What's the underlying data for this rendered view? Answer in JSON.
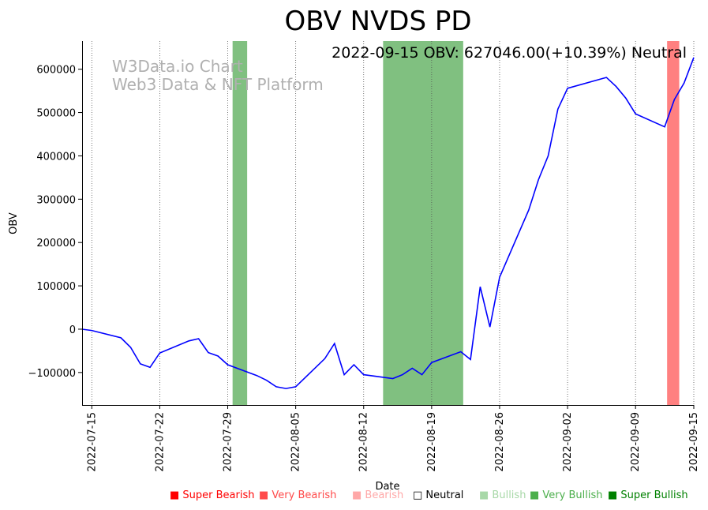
{
  "chart_data": {
    "type": "line",
    "title": "OBV NVDS PD",
    "xlabel": "Date",
    "ylabel": "OBV",
    "watermark": [
      "W3Data.io Chart",
      "Web3 Data & NFT Platform"
    ],
    "summary": "2022-09-15 OBV: 627046.00(+10.39%) Neutral",
    "x_tick_labels": [
      "2022-07-15",
      "2022-07-22",
      "2022-07-29",
      "2022-08-05",
      "2022-08-12",
      "2022-08-19",
      "2022-08-26",
      "2022-09-02",
      "2022-09-09",
      "2022-09-15"
    ],
    "x_range": [
      "2022-07-14",
      "2022-09-15"
    ],
    "ylim": [
      -175000,
      665000
    ],
    "y_ticks": [
      -100000,
      0,
      100000,
      200000,
      300000,
      400000,
      500000,
      600000
    ],
    "y_tick_labels": [
      "−100000",
      "0",
      "100000",
      "200000",
      "300000",
      "400000",
      "500000",
      "600000"
    ],
    "grid": "vertical dotted at x ticks",
    "series": [
      {
        "color": "#0000ff",
        "points": [
          [
            "2022-07-14",
            0
          ],
          [
            "2022-07-15",
            -3000
          ],
          [
            "2022-07-18",
            -20000
          ],
          [
            "2022-07-19",
            -42000
          ],
          [
            "2022-07-20",
            -80000
          ],
          [
            "2022-07-21",
            -88000
          ],
          [
            "2022-07-22",
            -55000
          ],
          [
            "2022-07-25",
            -27000
          ],
          [
            "2022-07-26",
            -22000
          ],
          [
            "2022-07-27",
            -54000
          ],
          [
            "2022-07-28",
            -62000
          ],
          [
            "2022-07-29",
            -82000
          ],
          [
            "2022-08-01",
            -107000
          ],
          [
            "2022-08-02",
            -118000
          ],
          [
            "2022-08-03",
            -133000
          ],
          [
            "2022-08-04",
            -137000
          ],
          [
            "2022-08-05",
            -133000
          ],
          [
            "2022-08-08",
            -68000
          ],
          [
            "2022-08-09",
            -33000
          ],
          [
            "2022-08-10",
            -105000
          ],
          [
            "2022-08-11",
            -82000
          ],
          [
            "2022-08-12",
            -105000
          ],
          [
            "2022-08-15",
            -114000
          ],
          [
            "2022-08-16",
            -105000
          ],
          [
            "2022-08-17",
            -90000
          ],
          [
            "2022-08-18",
            -105000
          ],
          [
            "2022-08-19",
            -77000
          ],
          [
            "2022-08-22",
            -52000
          ],
          [
            "2022-08-23",
            -70000
          ],
          [
            "2022-08-24",
            98000
          ],
          [
            "2022-08-25",
            5000
          ],
          [
            "2022-08-26",
            120000
          ],
          [
            "2022-08-29",
            275000
          ],
          [
            "2022-08-30",
            345000
          ],
          [
            "2022-08-31",
            400000
          ],
          [
            "2022-09-01",
            508000
          ],
          [
            "2022-09-02",
            556000
          ],
          [
            "2022-09-06",
            581000
          ],
          [
            "2022-09-07",
            560000
          ],
          [
            "2022-09-08",
            533000
          ],
          [
            "2022-09-09",
            497000
          ],
          [
            "2022-09-12",
            467000
          ],
          [
            "2022-09-13",
            530000
          ],
          [
            "2022-09-14",
            568000
          ],
          [
            "2022-09-15",
            627046
          ]
        ]
      }
    ],
    "shaded_regions": [
      {
        "start": "2022-07-29T12:00",
        "end": "2022-07-31",
        "color": "#80c080"
      },
      {
        "start": "2022-08-14",
        "end": "2022-08-22T06:00",
        "color": "#80c080"
      },
      {
        "start": "2022-09-12T06:00",
        "end": "2022-09-13T12:00",
        "color": "#ff8080"
      }
    ],
    "legend": [
      {
        "label": "Super Bearish",
        "color": "#ff0000"
      },
      {
        "label": "Very Bearish",
        "color": "#ff4a4a"
      },
      {
        "label": "Bearish",
        "color": "#ffa8a8"
      },
      {
        "label": "Neutral",
        "color": "#000000"
      },
      {
        "label": "Bullish",
        "color": "#a8d8a8"
      },
      {
        "label": "Very Bullish",
        "color": "#4caf4c"
      },
      {
        "label": "Super Bullish",
        "color": "#008000"
      }
    ]
  }
}
